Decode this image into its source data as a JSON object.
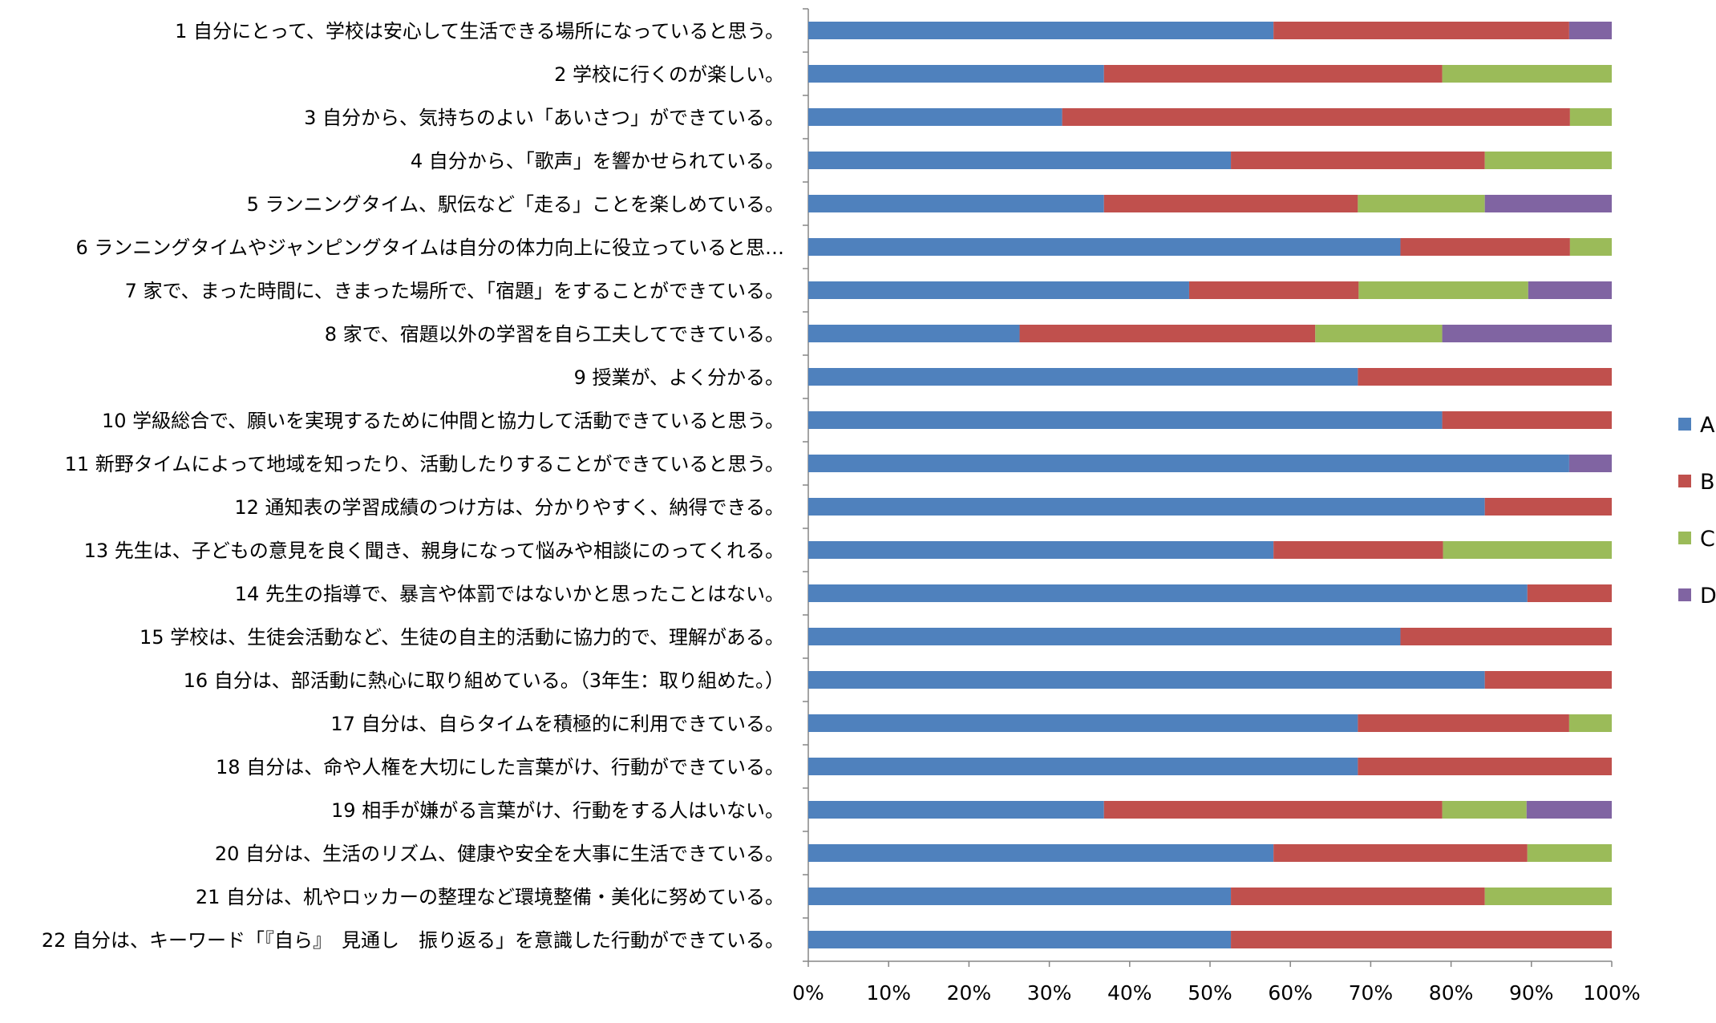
{
  "chart_data": {
    "type": "bar",
    "orientation": "horizontal",
    "stacked": "percent",
    "categories": [
      "1  自分にとって、学校は安心して生活できる場所になっていると思う。",
      "2  学校に行くのが楽しい。",
      "3  自分から、気持ちのよい「あいさつ」ができている。",
      "4  自分から、「歌声」を響かせられている。",
      "5  ランニングタイム、駅伝など「走る」ことを楽しめている。",
      "6  ランニングタイムやジャンピングタイムは自分の体力向上に役立っていると思…",
      "7  家で、まった時間に、きまった場所で、「宿題」をすることができている。",
      "8  家で、宿題以外の学習を自ら工夫してできている。",
      "9  授業が、よく分かる。",
      "10  学級総合で、願いを実現するために仲間と協力して活動できていると思う。",
      "11  新野タイムによって地域を知ったり、活動したりすることができていると思う。",
      "12  通知表の学習成績のつけ方は、分かりやすく、納得できる。",
      "13  先生は、子どもの意見を良く聞き、親身になって悩みや相談にのってくれる。",
      "14  先生の指導で、暴言や体罰ではないかと思ったことはない。",
      "15  学校は、生徒会活動など、生徒の自主的活動に協力的で、理解がある。",
      "16  自分は、部活動に熱心に取り組めている。（3年生：取り組めた。）",
      "17  自分は、自らタイムを積極的に利用できている。",
      "18  自分は、命や人権を大切にした言葉がけ、行動ができている。",
      "19  相手が嫌がる言葉がけ、行動をする人はいない。",
      "20  自分は、生活のリズム、健康や安全を大事に生活できている。",
      "21  自分は、机やロッカーの整理など環境整備・美化に努めている。",
      "22  自分は、キーワード「『自ら』　見通し　振り返る」を意識した行動ができている。"
    ],
    "series": [
      {
        "name": "A",
        "color": "#4F81BD",
        "values": [
          57.9,
          36.8,
          31.6,
          52.6,
          36.8,
          73.7,
          47.4,
          26.3,
          68.4,
          78.9,
          94.7,
          84.2,
          57.9,
          89.5,
          73.7,
          84.2,
          68.4,
          68.4,
          36.8,
          57.9,
          52.6,
          52.6
        ]
      },
      {
        "name": "B",
        "color": "#C0504D",
        "values": [
          36.8,
          42.1,
          63.2,
          31.6,
          31.6,
          21.1,
          21.1,
          36.8,
          31.6,
          21.1,
          0,
          15.8,
          21.1,
          10.5,
          26.3,
          15.8,
          26.3,
          31.6,
          42.1,
          31.6,
          31.6,
          47.4
        ]
      },
      {
        "name": "C",
        "color": "#9BBB59",
        "values": [
          0,
          21.1,
          5.2,
          15.8,
          15.8,
          5.2,
          21.1,
          15.8,
          0,
          0,
          0,
          0,
          21.0,
          0,
          0,
          0,
          5.3,
          0,
          10.5,
          10.5,
          15.8,
          0
        ]
      },
      {
        "name": "D",
        "color": "#8064A2",
        "values": [
          5.3,
          0,
          0,
          0,
          15.8,
          0,
          10.4,
          21.1,
          0,
          0,
          5.3,
          0,
          0,
          0,
          0,
          0,
          0,
          0,
          10.6,
          0,
          0,
          0
        ]
      }
    ],
    "xlim": [
      0,
      100
    ],
    "x_ticks": [
      "0%",
      "10%",
      "20%",
      "30%",
      "40%",
      "50%",
      "60%",
      "70%",
      "80%",
      "90%",
      "100%"
    ],
    "grid": false,
    "legend": "right",
    "title": "",
    "xlabel": "",
    "ylabel": ""
  }
}
